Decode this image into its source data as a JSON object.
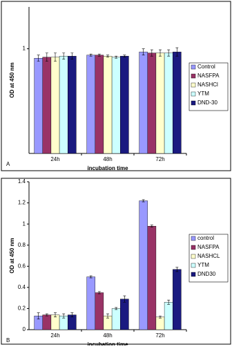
{
  "chart_data": [
    {
      "type": "bar",
      "panel_label": "A",
      "ylabel": "OD at 450 nm",
      "xlabel": "incubation time",
      "categories": [
        "24h",
        "48h",
        "72h"
      ],
      "ylim": [
        0,
        1.4
      ],
      "yticks": [
        1
      ],
      "series": [
        {
          "name": "Control",
          "color": "#9999ff",
          "values": [
            0.91,
            0.94,
            0.97
          ],
          "errors": [
            0.03,
            0.01,
            0.03
          ]
        },
        {
          "name": "NASFPA",
          "color": "#993366",
          "values": [
            0.92,
            0.94,
            0.96
          ],
          "errors": [
            0.04,
            0.01,
            0.03
          ]
        },
        {
          "name": "NASHCl",
          "color": "#ffffcc",
          "values": [
            0.92,
            0.93,
            0.96
          ],
          "errors": [
            0.04,
            0.01,
            0.03
          ]
        },
        {
          "name": "YTM",
          "color": "#ccffff",
          "values": [
            0.93,
            0.92,
            0.96
          ],
          "errors": [
            0.03,
            0.01,
            0.03
          ]
        },
        {
          "name": "DND-30",
          "color": "#1a1a80",
          "values": [
            0.93,
            0.93,
            0.97
          ],
          "errors": [
            0.03,
            0.01,
            0.04
          ]
        }
      ]
    },
    {
      "type": "bar",
      "panel_label": "B",
      "ylabel": "OD at 450 nm",
      "xlabel": "incubation time",
      "categories": [
        "24h",
        "48h",
        "72h"
      ],
      "ylim": [
        0,
        1.4
      ],
      "yticks": [
        0,
        0.2,
        0.4,
        0.6,
        0.8,
        1,
        1.2,
        1.4
      ],
      "series": [
        {
          "name": "control",
          "color": "#9999ff",
          "values": [
            0.13,
            0.5,
            1.22
          ],
          "errors": [
            0.03,
            0.01,
            0.01
          ]
        },
        {
          "name": "NASFPA",
          "color": "#993366",
          "values": [
            0.14,
            0.35,
            0.98
          ],
          "errors": [
            0.01,
            0.01,
            0.01
          ]
        },
        {
          "name": "NASHCL",
          "color": "#ffffcc",
          "values": [
            0.14,
            0.13,
            0.12
          ],
          "errors": [
            0.02,
            0.02,
            0.01
          ]
        },
        {
          "name": "YTM",
          "color": "#ccffff",
          "values": [
            0.13,
            0.2,
            0.26
          ],
          "errors": [
            0.02,
            0.01,
            0.02
          ]
        },
        {
          "name": "DND30",
          "color": "#1a1a80",
          "values": [
            0.14,
            0.29,
            0.57
          ],
          "errors": [
            0.02,
            0.03,
            0.02
          ]
        }
      ]
    }
  ]
}
